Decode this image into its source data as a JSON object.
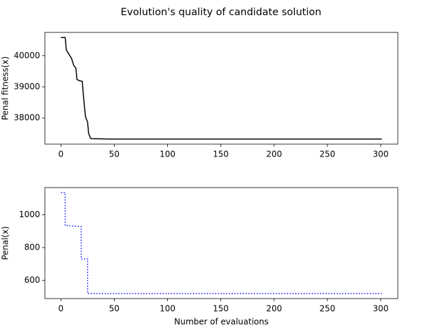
{
  "title": "Evolution's quality of candidate solution",
  "chart_data": [
    {
      "type": "line",
      "ylabel": "Penal fitness(x)",
      "xlim": [
        -15.05,
        316.05
      ],
      "ylim": [
        37163,
        40747
      ],
      "xticks": [
        0,
        50,
        100,
        150,
        200,
        250,
        300
      ],
      "yticks": [
        38000,
        39000,
        40000
      ],
      "series": [
        {
          "color": "#000000",
          "linestyle": "solid",
          "x": [
            0,
            4,
            5,
            6,
            8,
            10,
            11,
            12,
            14,
            15,
            17,
            20,
            21,
            22,
            23,
            25,
            26,
            28,
            45,
            301
          ],
          "values": [
            40584,
            40584,
            40200,
            40130,
            40020,
            39910,
            39800,
            39690,
            39600,
            39240,
            39200,
            39180,
            38750,
            38400,
            38050,
            37870,
            37500,
            37340,
            37326,
            37326
          ]
        }
      ]
    },
    {
      "type": "line",
      "ylabel": "Penal(x)",
      "xlabel": "Number of evaluations",
      "xlim": [
        -15.05,
        316.05
      ],
      "ylim": [
        489,
        1166
      ],
      "xticks": [
        0,
        50,
        100,
        150,
        200,
        250,
        300
      ],
      "yticks": [
        600,
        800,
        1000
      ],
      "series": [
        {
          "color": "#0000ff",
          "linestyle": "dotted",
          "x": [
            0,
            4,
            4,
            19,
            19,
            25,
            25,
            301
          ],
          "values": [
            1135,
            1135,
            935,
            928,
            731,
            731,
            520,
            520
          ]
        }
      ]
    }
  ]
}
